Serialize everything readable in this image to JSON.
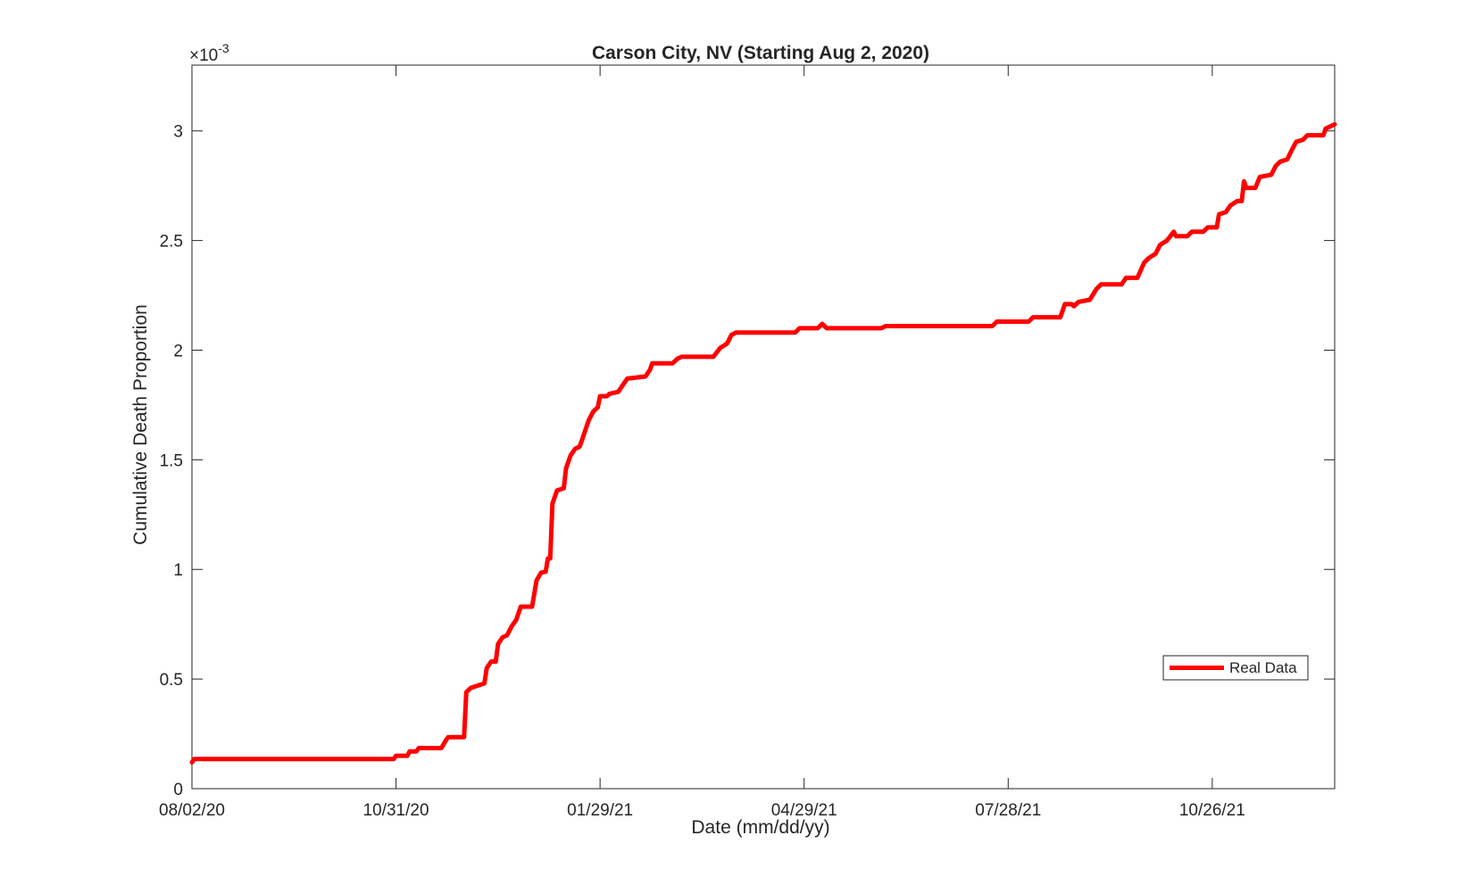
{
  "chart_data": {
    "type": "line",
    "title": "Carson City, NV (Starting Aug 2, 2020)",
    "xlabel": "Date (mm/dd/yy)",
    "ylabel": "Cumulative Death Proportion",
    "y_exponent_label": "×10",
    "y_exponent_power": "-3",
    "xlim": [
      "2020-08-02",
      "2021-12-19"
    ],
    "ylim": [
      0,
      3.3
    ],
    "x_ticks": [
      "2020-08-02",
      "2020-10-31",
      "2021-01-29",
      "2021-04-29",
      "2021-07-28",
      "2021-10-26"
    ],
    "x_tick_labels": [
      "08/02/20",
      "10/31/20",
      "01/29/21",
      "04/29/21",
      "07/28/21",
      "10/26/21"
    ],
    "y_ticks": [
      0,
      0.5,
      1,
      1.5,
      2,
      2.5,
      3
    ],
    "y_tick_labels": [
      "0",
      "0.5",
      "1",
      "1.5",
      "2",
      "2.5",
      "3"
    ],
    "legend": {
      "position": "bottom-right",
      "entries": [
        "Real Data"
      ]
    },
    "grid": false,
    "series": [
      {
        "name": "Real Data",
        "color": "#ff0000",
        "points": [
          [
            "2020-08-02",
            0.12
          ],
          [
            "2020-08-03",
            0.135
          ],
          [
            "2020-10-30",
            0.135
          ],
          [
            "2020-10-31",
            0.15
          ],
          [
            "2020-11-05",
            0.15
          ],
          [
            "2020-11-06",
            0.17
          ],
          [
            "2020-11-09",
            0.17
          ],
          [
            "2020-11-10",
            0.185
          ],
          [
            "2020-11-20",
            0.185
          ],
          [
            "2020-11-22",
            0.22
          ],
          [
            "2020-11-23",
            0.235
          ],
          [
            "2020-11-30",
            0.235
          ],
          [
            "2020-12-01",
            0.44
          ],
          [
            "2020-12-03",
            0.46
          ],
          [
            "2020-12-06",
            0.47
          ],
          [
            "2020-12-09",
            0.48
          ],
          [
            "2020-12-10",
            0.55
          ],
          [
            "2020-12-12",
            0.58
          ],
          [
            "2020-12-14",
            0.58
          ],
          [
            "2020-12-15",
            0.66
          ],
          [
            "2020-12-17",
            0.69
          ],
          [
            "2020-12-19",
            0.7
          ],
          [
            "2020-12-21",
            0.74
          ],
          [
            "2020-12-23",
            0.77
          ],
          [
            "2020-12-25",
            0.83
          ],
          [
            "2020-12-30",
            0.83
          ],
          [
            "2021-01-01",
            0.95
          ],
          [
            "2021-01-03",
            0.985
          ],
          [
            "2021-01-05",
            0.99
          ],
          [
            "2021-01-06",
            1.05
          ],
          [
            "2021-01-07",
            1.05
          ],
          [
            "2021-01-08",
            1.3
          ],
          [
            "2021-01-10",
            1.36
          ],
          [
            "2021-01-13",
            1.37
          ],
          [
            "2021-01-14",
            1.46
          ],
          [
            "2021-01-16",
            1.52
          ],
          [
            "2021-01-18",
            1.55
          ],
          [
            "2021-01-20",
            1.56
          ],
          [
            "2021-01-22",
            1.62
          ],
          [
            "2021-01-24",
            1.68
          ],
          [
            "2021-01-26",
            1.72
          ],
          [
            "2021-01-28",
            1.74
          ],
          [
            "2021-01-29",
            1.79
          ],
          [
            "2021-02-01",
            1.79
          ],
          [
            "2021-02-02",
            1.8
          ],
          [
            "2021-02-06",
            1.81
          ],
          [
            "2021-02-08",
            1.84
          ],
          [
            "2021-02-10",
            1.87
          ],
          [
            "2021-02-18",
            1.88
          ],
          [
            "2021-02-20",
            1.91
          ],
          [
            "2021-02-21",
            1.94
          ],
          [
            "2021-03-02",
            1.94
          ],
          [
            "2021-03-04",
            1.96
          ],
          [
            "2021-03-06",
            1.97
          ],
          [
            "2021-03-20",
            1.97
          ],
          [
            "2021-03-23",
            2.01
          ],
          [
            "2021-03-26",
            2.03
          ],
          [
            "2021-03-28",
            2.07
          ],
          [
            "2021-03-30",
            2.08
          ],
          [
            "2021-04-25",
            2.08
          ],
          [
            "2021-04-27",
            2.1
          ],
          [
            "2021-05-05",
            2.1
          ],
          [
            "2021-05-07",
            2.12
          ],
          [
            "2021-05-09",
            2.1
          ],
          [
            "2021-06-02",
            2.1
          ],
          [
            "2021-06-04",
            2.11
          ],
          [
            "2021-07-21",
            2.11
          ],
          [
            "2021-07-23",
            2.13
          ],
          [
            "2021-08-06",
            2.13
          ],
          [
            "2021-08-08",
            2.15
          ],
          [
            "2021-08-20",
            2.15
          ],
          [
            "2021-08-22",
            2.21
          ],
          [
            "2021-08-25",
            2.21
          ],
          [
            "2021-08-26",
            2.2
          ],
          [
            "2021-08-28",
            2.22
          ],
          [
            "2021-09-02",
            2.23
          ],
          [
            "2021-09-05",
            2.28
          ],
          [
            "2021-09-07",
            2.3
          ],
          [
            "2021-09-16",
            2.3
          ],
          [
            "2021-09-18",
            2.33
          ],
          [
            "2021-09-23",
            2.33
          ],
          [
            "2021-09-26",
            2.4
          ],
          [
            "2021-09-28",
            2.42
          ],
          [
            "2021-10-01",
            2.44
          ],
          [
            "2021-10-03",
            2.48
          ],
          [
            "2021-10-06",
            2.5
          ],
          [
            "2021-10-09",
            2.54
          ],
          [
            "2021-10-10",
            2.52
          ],
          [
            "2021-10-15",
            2.52
          ],
          [
            "2021-10-17",
            2.54
          ],
          [
            "2021-10-22",
            2.54
          ],
          [
            "2021-10-24",
            2.56
          ],
          [
            "2021-10-28",
            2.56
          ],
          [
            "2021-10-29",
            2.62
          ],
          [
            "2021-11-01",
            2.63
          ],
          [
            "2021-11-03",
            2.66
          ],
          [
            "2021-11-06",
            2.68
          ],
          [
            "2021-11-08",
            2.68
          ],
          [
            "2021-11-09",
            2.77
          ],
          [
            "2021-11-10",
            2.74
          ],
          [
            "2021-11-14",
            2.74
          ],
          [
            "2021-11-16",
            2.79
          ],
          [
            "2021-11-21",
            2.8
          ],
          [
            "2021-11-23",
            2.84
          ],
          [
            "2021-11-25",
            2.86
          ],
          [
            "2021-11-28",
            2.87
          ],
          [
            "2021-11-30",
            2.91
          ],
          [
            "2021-12-02",
            2.95
          ],
          [
            "2021-12-05",
            2.96
          ],
          [
            "2021-12-07",
            2.98
          ],
          [
            "2021-12-14",
            2.98
          ],
          [
            "2021-12-15",
            3.01
          ],
          [
            "2021-12-17",
            3.02
          ],
          [
            "2021-12-19",
            3.03
          ]
        ]
      }
    ]
  }
}
